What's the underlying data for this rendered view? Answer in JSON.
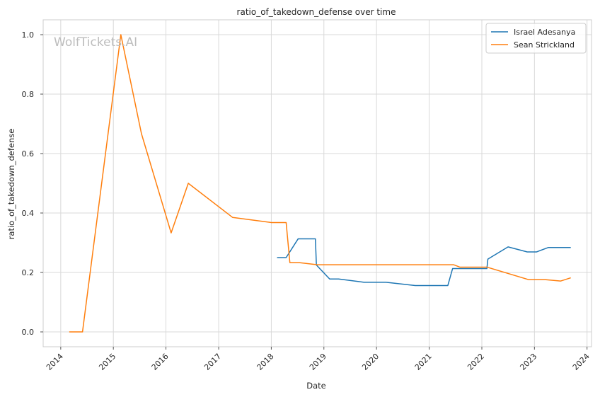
{
  "watermark": "WolfTickets.AI",
  "chart_data": {
    "type": "line",
    "title": "ratio_of_takedown_defense over time",
    "xlabel": "Date",
    "ylabel": "ratio_of_takedown_defense",
    "xlim": [
      "2013-09-01",
      "2024-02-01"
    ],
    "ylim": [
      -0.05,
      1.05
    ],
    "x_ticks": [
      "2014",
      "2015",
      "2016",
      "2017",
      "2018",
      "2019",
      "2020",
      "2021",
      "2022",
      "2023",
      "2024"
    ],
    "y_ticks": [
      0.0,
      0.2,
      0.4,
      0.6,
      0.8,
      1.0
    ],
    "y_tick_labels": [
      "0.0",
      "0.2",
      "0.4",
      "0.6",
      "0.8",
      "1.0"
    ],
    "grid": true,
    "legend_position": "top-right",
    "series": [
      {
        "name": "Israel Adesanya",
        "color": "#1f77b4",
        "points": [
          [
            "2018-02-10",
            0.25
          ],
          [
            "2018-04-14",
            0.25
          ],
          [
            "2018-07-06",
            0.313
          ],
          [
            "2018-11-03",
            0.313
          ],
          [
            "2018-11-10",
            0.225
          ],
          [
            "2019-02-10",
            0.178
          ],
          [
            "2019-04-13",
            0.178
          ],
          [
            "2019-10-06",
            0.167
          ],
          [
            "2020-03-07",
            0.167
          ],
          [
            "2020-09-26",
            0.156
          ],
          [
            "2021-05-10",
            0.156
          ],
          [
            "2021-06-12",
            0.213
          ],
          [
            "2022-02-05",
            0.213
          ],
          [
            "2022-02-12",
            0.245
          ],
          [
            "2022-07-02",
            0.286
          ],
          [
            "2022-11-12",
            0.269
          ],
          [
            "2023-01-15",
            0.269
          ],
          [
            "2023-04-08",
            0.284
          ],
          [
            "2023-09-10",
            0.284
          ]
        ]
      },
      {
        "name": "Sean Strickland",
        "color": "#ff7f0e",
        "points": [
          [
            "2014-03-01",
            0.0
          ],
          [
            "2014-06-01",
            0.0
          ],
          [
            "2015-02-22",
            1.0
          ],
          [
            "2015-07-15",
            0.667
          ],
          [
            "2016-02-06",
            0.333
          ],
          [
            "2016-06-04",
            0.5
          ],
          [
            "2017-04-08",
            0.385
          ],
          [
            "2017-12-30",
            0.368
          ],
          [
            "2018-04-14",
            0.368
          ],
          [
            "2018-05-10",
            0.233
          ],
          [
            "2018-07-14",
            0.233
          ],
          [
            "2018-11-17",
            0.226
          ],
          [
            "2021-06-19",
            0.226
          ],
          [
            "2021-08-01",
            0.218
          ],
          [
            "2022-02-05",
            0.218
          ],
          [
            "2022-11-20",
            0.176
          ],
          [
            "2023-03-15",
            0.176
          ],
          [
            "2023-07-01",
            0.171
          ],
          [
            "2023-09-10",
            0.182
          ]
        ]
      }
    ]
  }
}
